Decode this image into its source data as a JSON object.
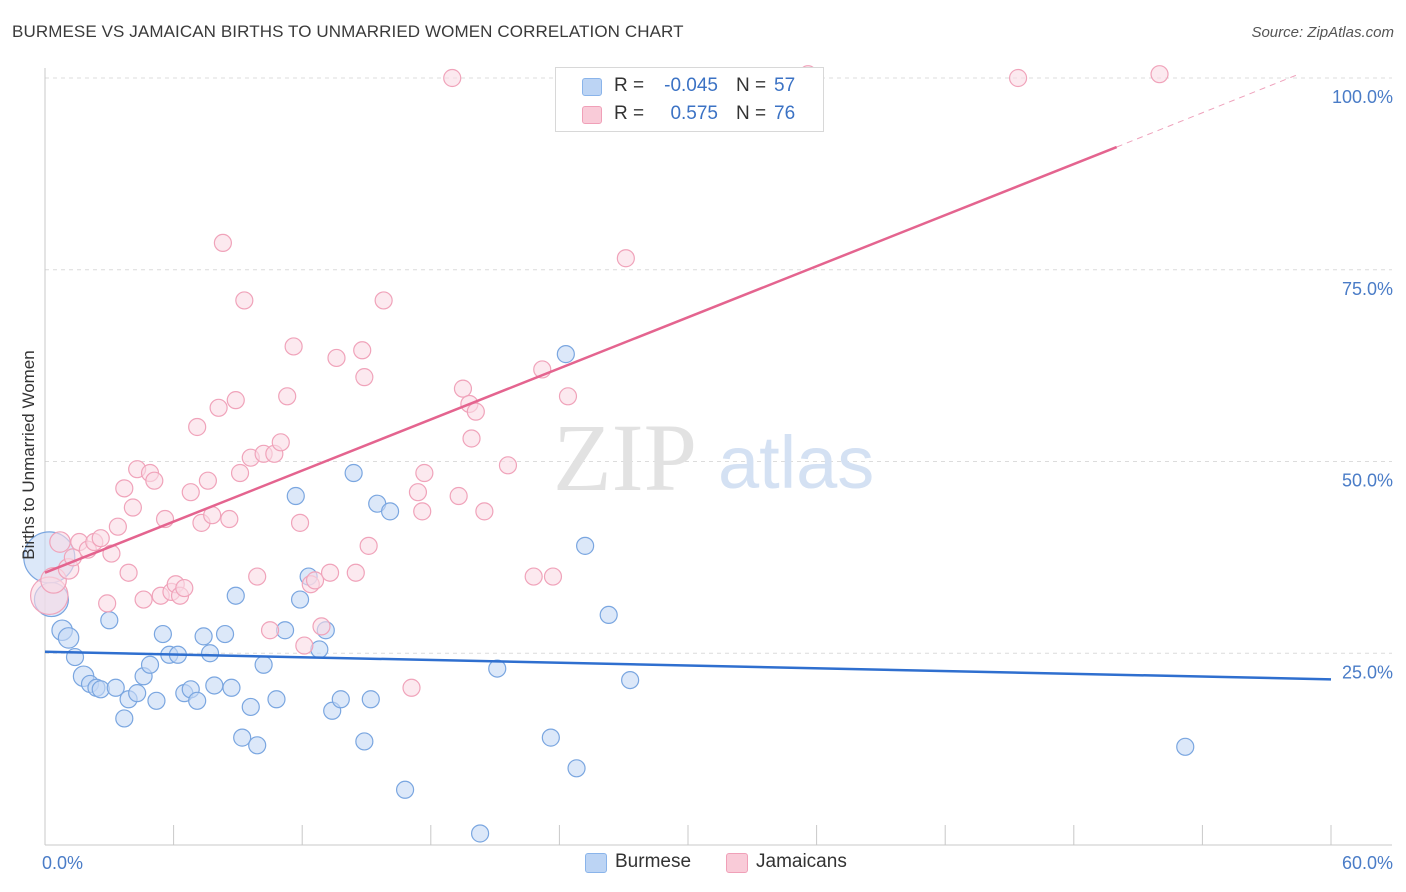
{
  "header": {
    "title": "BURMESE VS JAMAICAN BIRTHS TO UNMARRIED WOMEN CORRELATION CHART",
    "source": "Source: ZipAtlas.com"
  },
  "legend": {
    "rows": [
      {
        "series": "Burmese",
        "r_label": "R =",
        "r_value": "-0.045",
        "n_label": "N =",
        "n_value": "57",
        "color": "#8ab4ea",
        "fill": "#bcd4f4"
      },
      {
        "series": "Jamaicans",
        "r_label": "R =",
        "r_value": "0.575",
        "n_label": "N =",
        "n_value": "76",
        "color": "#f0a0b8",
        "fill": "#f9cbd8"
      }
    ],
    "bottom": [
      "Burmese",
      "Jamaicans"
    ]
  },
  "watermark": {
    "zip": "ZIP",
    "atlas": "atlas"
  },
  "colors": {
    "blue_line": "#2f6fcf",
    "pink_line": "#e4648f",
    "blue_point_stroke": "#7aa6e0",
    "blue_point_fill": "#c4d9f5",
    "pink_point_stroke": "#f0a3ba",
    "pink_point_fill": "#fadbe4",
    "tick_text": "#4a7cc7",
    "grid": "#dcdcdc"
  },
  "chart_data": {
    "type": "scatter",
    "title": "BURMESE VS JAMAICAN BIRTHS TO UNMARRIED WOMEN CORRELATION CHART",
    "xlabel": "",
    "ylabel": "Births to Unmarried Women",
    "xlim": [
      0,
      60
    ],
    "ylim": [
      0,
      100
    ],
    "x_tick_labels": [
      "0.0%",
      "60.0%"
    ],
    "y_ticks": [
      25,
      50,
      75,
      100
    ],
    "y_tick_labels": [
      "25.0%",
      "50.0%",
      "75.0%",
      "100.0%"
    ],
    "grid": true,
    "series": [
      {
        "name": "Burmese",
        "r": -0.045,
        "n": 57,
        "trend": {
          "x0": 0,
          "y0": 25.2,
          "x1": 60,
          "y1": 21.6
        },
        "points": [
          [
            0.2,
            37.5,
            3
          ],
          [
            0.3,
            32.0,
            2
          ],
          [
            0.8,
            28.0,
            1.2
          ],
          [
            1.1,
            27.0,
            1.2
          ],
          [
            1.4,
            24.5,
            1
          ],
          [
            1.8,
            22.0,
            1.2
          ],
          [
            2.1,
            21.0,
            1
          ],
          [
            2.4,
            20.5,
            1
          ],
          [
            2.6,
            20.3,
            1
          ],
          [
            3.0,
            29.3,
            1
          ],
          [
            3.3,
            20.5,
            1
          ],
          [
            3.7,
            16.5,
            1
          ],
          [
            3.9,
            19.0,
            1
          ],
          [
            4.3,
            19.8,
            1
          ],
          [
            4.6,
            22.0,
            1
          ],
          [
            4.9,
            23.5,
            1
          ],
          [
            5.2,
            18.8,
            1
          ],
          [
            5.5,
            27.5,
            1
          ],
          [
            5.8,
            24.8,
            1
          ],
          [
            6.2,
            24.8,
            1
          ],
          [
            6.5,
            19.8,
            1
          ],
          [
            6.8,
            20.3,
            1
          ],
          [
            7.1,
            18.8,
            1
          ],
          [
            7.4,
            27.2,
            1
          ],
          [
            7.7,
            25.0,
            1
          ],
          [
            7.9,
            20.8,
            1
          ],
          [
            8.4,
            27.5,
            1
          ],
          [
            8.7,
            20.5,
            1
          ],
          [
            8.9,
            32.5,
            1
          ],
          [
            9.2,
            14.0,
            1
          ],
          [
            9.6,
            18.0,
            1
          ],
          [
            9.9,
            13.0,
            1
          ],
          [
            10.2,
            23.5,
            1
          ],
          [
            10.8,
            19.0,
            1
          ],
          [
            11.2,
            28.0,
            1
          ],
          [
            11.7,
            45.5,
            1
          ],
          [
            11.9,
            32.0,
            1
          ],
          [
            12.3,
            35.0,
            1
          ],
          [
            12.8,
            25.5,
            1
          ],
          [
            13.1,
            28.0,
            1
          ],
          [
            13.4,
            17.5,
            1
          ],
          [
            13.8,
            19.0,
            1
          ],
          [
            14.4,
            48.5,
            1
          ],
          [
            14.9,
            13.5,
            1
          ],
          [
            15.2,
            19.0,
            1
          ],
          [
            15.5,
            44.5,
            1
          ],
          [
            16.1,
            43.5,
            1
          ],
          [
            16.8,
            7.2,
            1
          ],
          [
            20.3,
            1.5,
            1
          ],
          [
            21.1,
            23.0,
            1
          ],
          [
            23.6,
            14.0,
            1
          ],
          [
            24.3,
            64.0,
            1
          ],
          [
            24.8,
            10.0,
            1
          ],
          [
            25.2,
            39.0,
            1
          ],
          [
            26.3,
            30.0,
            1
          ],
          [
            27.3,
            21.5,
            1
          ],
          [
            53.2,
            12.8,
            1
          ]
        ]
      },
      {
        "name": "Jamaicans",
        "r": 0.575,
        "n": 76,
        "trend": {
          "x0": 0,
          "y0": 35.5,
          "x1": 50,
          "y1": 91.0
        },
        "trend_dashed_to": {
          "x": 58.5,
          "y": 100.5
        },
        "points": [
          [
            0.2,
            32.5,
            2.2
          ],
          [
            0.4,
            34.5,
            1.5
          ],
          [
            0.7,
            39.5,
            1.2
          ],
          [
            1.1,
            36.0,
            1.2
          ],
          [
            1.3,
            37.5,
            1
          ],
          [
            1.6,
            39.5,
            1
          ],
          [
            2.0,
            38.5,
            1
          ],
          [
            2.3,
            39.5,
            1
          ],
          [
            2.6,
            40.0,
            1
          ],
          [
            2.9,
            31.5,
            1
          ],
          [
            3.1,
            38.0,
            1
          ],
          [
            3.4,
            41.5,
            1
          ],
          [
            3.7,
            46.5,
            1
          ],
          [
            3.9,
            35.5,
            1
          ],
          [
            4.1,
            44.0,
            1
          ],
          [
            4.3,
            49.0,
            1
          ],
          [
            4.6,
            32.0,
            1
          ],
          [
            4.9,
            48.5,
            1
          ],
          [
            5.1,
            47.5,
            1
          ],
          [
            5.4,
            32.5,
            1
          ],
          [
            5.6,
            42.5,
            1
          ],
          [
            5.9,
            33.0,
            1
          ],
          [
            6.1,
            34.0,
            1
          ],
          [
            6.3,
            32.5,
            1
          ],
          [
            6.5,
            33.5,
            1
          ],
          [
            6.8,
            46.0,
            1
          ],
          [
            7.1,
            54.5,
            1
          ],
          [
            7.3,
            42.0,
            1
          ],
          [
            7.6,
            47.5,
            1
          ],
          [
            7.8,
            43.0,
            1
          ],
          [
            8.1,
            57.0,
            1
          ],
          [
            8.3,
            78.5,
            1
          ],
          [
            8.6,
            42.5,
            1
          ],
          [
            8.9,
            58.0,
            1
          ],
          [
            9.1,
            48.5,
            1
          ],
          [
            9.3,
            71.0,
            1
          ],
          [
            9.6,
            50.5,
            1
          ],
          [
            9.9,
            35.0,
            1
          ],
          [
            10.2,
            51.0,
            1
          ],
          [
            10.5,
            28.0,
            1
          ],
          [
            10.7,
            51.0,
            1
          ],
          [
            11.0,
            52.5,
            1
          ],
          [
            11.3,
            58.5,
            1
          ],
          [
            11.6,
            65.0,
            1
          ],
          [
            11.9,
            42.0,
            1
          ],
          [
            12.1,
            26.0,
            1
          ],
          [
            12.4,
            34.0,
            1
          ],
          [
            12.6,
            34.5,
            1
          ],
          [
            12.9,
            28.5,
            1
          ],
          [
            13.3,
            35.5,
            1
          ],
          [
            13.6,
            63.5,
            1
          ],
          [
            14.5,
            35.5,
            1
          ],
          [
            14.8,
            64.5,
            1
          ],
          [
            14.9,
            61.0,
            1
          ],
          [
            15.1,
            39.0,
            1
          ],
          [
            15.8,
            71.0,
            1
          ],
          [
            17.1,
            20.5,
            1
          ],
          [
            17.4,
            46.0,
            1
          ],
          [
            17.6,
            43.5,
            1
          ],
          [
            17.7,
            48.5,
            1
          ],
          [
            19.0,
            100.0,
            1
          ],
          [
            19.3,
            45.5,
            1
          ],
          [
            19.5,
            59.5,
            1
          ],
          [
            19.8,
            57.5,
            1
          ],
          [
            19.9,
            53.0,
            1
          ],
          [
            20.1,
            56.5,
            1
          ],
          [
            20.5,
            43.5,
            1
          ],
          [
            21.6,
            49.5,
            1
          ],
          [
            22.8,
            35.0,
            1
          ],
          [
            23.2,
            62.0,
            1
          ],
          [
            23.7,
            35.0,
            1
          ],
          [
            24.4,
            58.5,
            1
          ],
          [
            27.1,
            76.5,
            1
          ],
          [
            35.6,
            100.5,
            1
          ],
          [
            45.4,
            100.0,
            1
          ],
          [
            52.0,
            100.5,
            1
          ]
        ]
      }
    ]
  }
}
